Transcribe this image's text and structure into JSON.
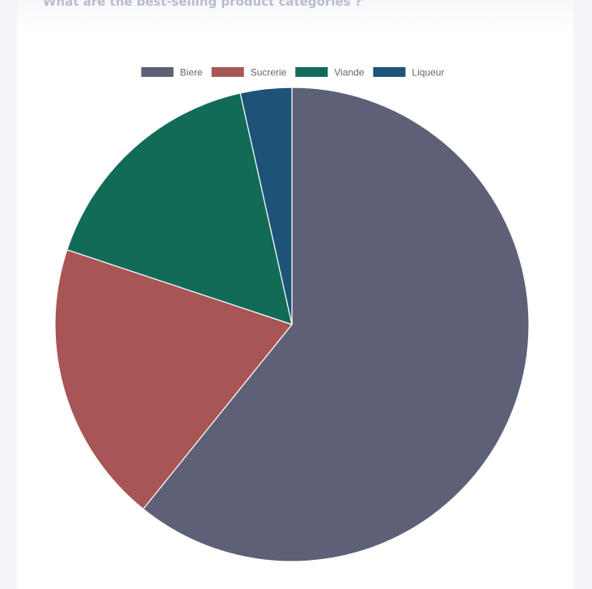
{
  "card": {
    "title": "What are the best-selling product categories ?"
  },
  "chart_data": {
    "type": "pie",
    "categories": [
      "Biere",
      "Sucrerie",
      "Viande",
      "Liqueur"
    ],
    "values": [
      60.8,
      19.3,
      16.4,
      3.5
    ],
    "colors": [
      "#5e6077",
      "#a85555",
      "#126b56",
      "#1e5378"
    ],
    "title": "",
    "legend": "top"
  }
}
